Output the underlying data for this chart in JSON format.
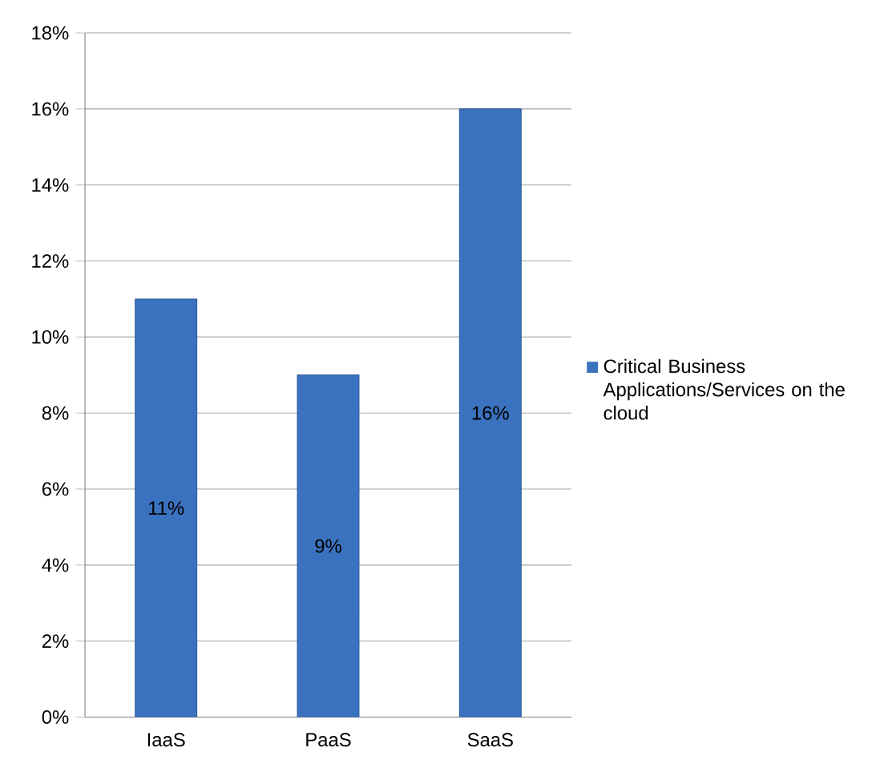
{
  "chart_data": {
    "type": "bar",
    "categories": [
      "IaaS",
      "PaaS",
      "SaaS"
    ],
    "series": [
      {
        "name": "Critical Business Applications/Services on the cloud",
        "color": "#3a72bf",
        "values": [
          11,
          9,
          16
        ],
        "value_labels": [
          "11%",
          "9%",
          "16%"
        ]
      }
    ],
    "ylim": [
      0,
      18
    ],
    "yticks": [
      {
        "value": 0,
        "label": "0%"
      },
      {
        "value": 2,
        "label": "2%"
      },
      {
        "value": 4,
        "label": "4%"
      },
      {
        "value": 6,
        "label": "6%"
      },
      {
        "value": 8,
        "label": "8%"
      },
      {
        "value": 10,
        "label": "10%"
      },
      {
        "value": 12,
        "label": "12%"
      },
      {
        "value": 14,
        "label": "14%"
      },
      {
        "value": 16,
        "label": "16%"
      },
      {
        "value": 18,
        "label": "18%"
      }
    ],
    "grid": "y",
    "legend": "right"
  }
}
